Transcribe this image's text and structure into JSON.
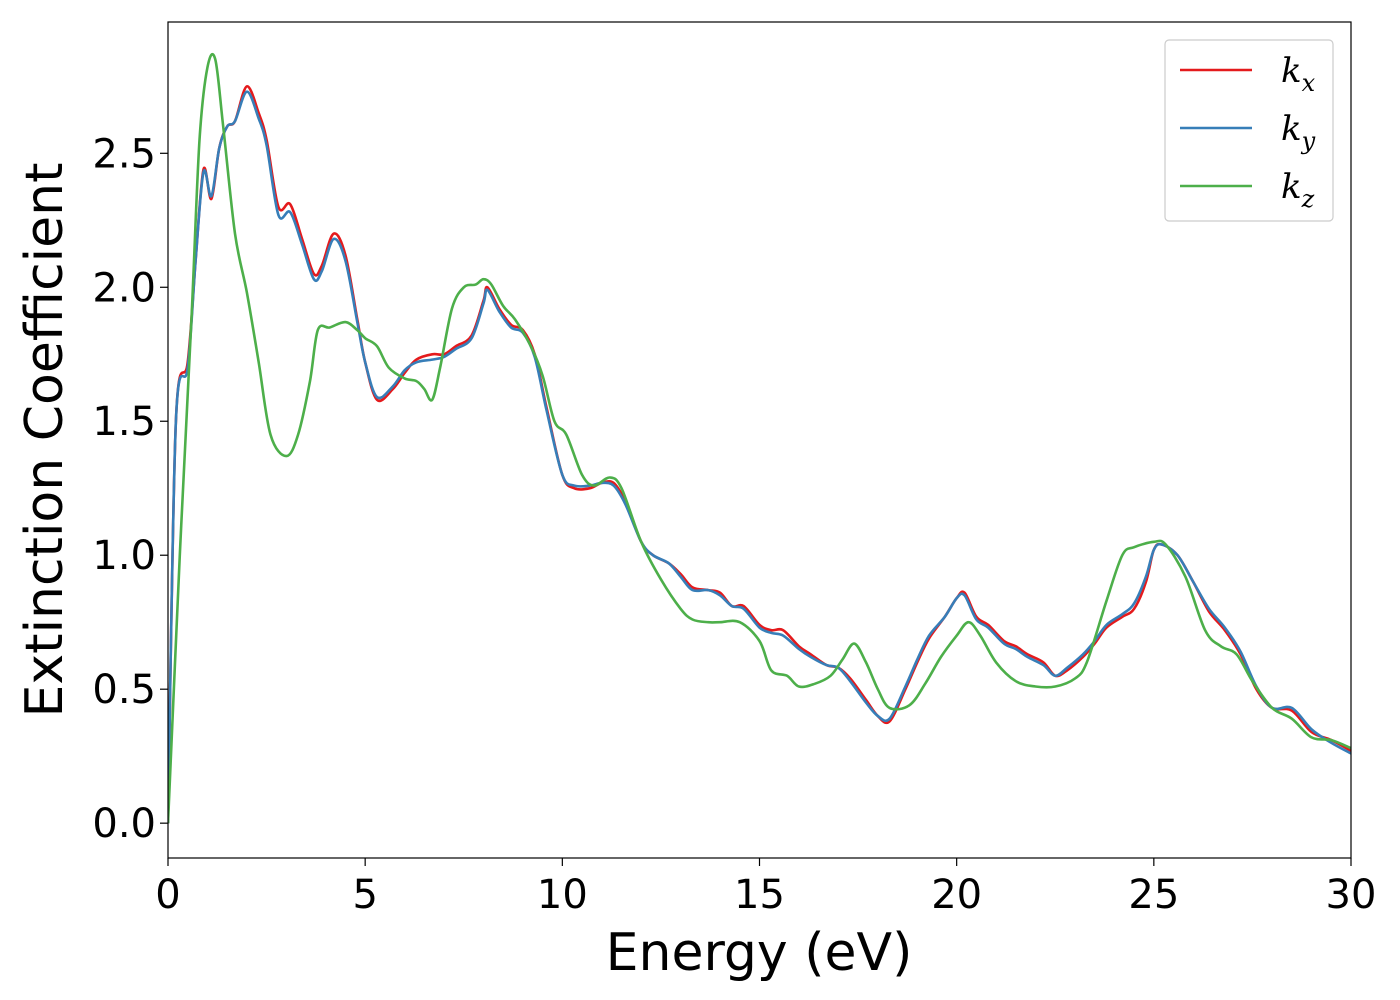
{
  "chart_data": {
    "type": "line",
    "title": "",
    "xlabel": "Energy (eV)",
    "ylabel": "Extinction Coefficient",
    "xlim": [
      0,
      30
    ],
    "ylim": [
      -0.13,
      2.99
    ],
    "xticks": [
      "0",
      "5",
      "10",
      "15",
      "20",
      "25",
      "30"
    ],
    "yticks": [
      "0.0",
      "0.5",
      "1.0",
      "1.5",
      "2.0",
      "2.5"
    ],
    "grid": false,
    "legend_position": "top-right",
    "series": [
      {
        "name": "k_x",
        "label_base": "k",
        "label_sub": "x",
        "color": "#e41a1c",
        "points": [
          [
            0,
            0
          ],
          [
            0.2,
            1.5
          ],
          [
            0.5,
            1.72
          ],
          [
            0.7,
            2.1
          ],
          [
            0.9,
            2.44
          ],
          [
            1.1,
            2.33
          ],
          [
            1.3,
            2.52
          ],
          [
            1.5,
            2.6
          ],
          [
            1.7,
            2.62
          ],
          [
            2.0,
            2.75
          ],
          [
            2.3,
            2.65
          ],
          [
            2.5,
            2.55
          ],
          [
            2.8,
            2.3
          ],
          [
            3.1,
            2.31
          ],
          [
            3.4,
            2.18
          ],
          [
            3.7,
            2.05
          ],
          [
            3.9,
            2.08
          ],
          [
            4.2,
            2.2
          ],
          [
            4.5,
            2.12
          ],
          [
            4.8,
            1.88
          ],
          [
            5.0,
            1.72
          ],
          [
            5.3,
            1.58
          ],
          [
            5.7,
            1.62
          ],
          [
            6.0,
            1.68
          ],
          [
            6.3,
            1.73
          ],
          [
            6.7,
            1.75
          ],
          [
            7.0,
            1.75
          ],
          [
            7.3,
            1.78
          ],
          [
            7.7,
            1.82
          ],
          [
            8.0,
            1.95
          ],
          [
            8.1,
            2.0
          ],
          [
            8.4,
            1.92
          ],
          [
            8.7,
            1.86
          ],
          [
            9.0,
            1.84
          ],
          [
            9.3,
            1.75
          ],
          [
            9.6,
            1.55
          ],
          [
            10.0,
            1.3
          ],
          [
            10.3,
            1.25
          ],
          [
            10.7,
            1.25
          ],
          [
            11.0,
            1.27
          ],
          [
            11.3,
            1.27
          ],
          [
            11.6,
            1.2
          ],
          [
            12.0,
            1.05
          ],
          [
            12.3,
            1.0
          ],
          [
            12.7,
            0.97
          ],
          [
            13.0,
            0.93
          ],
          [
            13.3,
            0.88
          ],
          [
            13.7,
            0.87
          ],
          [
            14.0,
            0.86
          ],
          [
            14.3,
            0.81
          ],
          [
            14.6,
            0.81
          ],
          [
            15.0,
            0.74
          ],
          [
            15.3,
            0.72
          ],
          [
            15.6,
            0.72
          ],
          [
            16.0,
            0.66
          ],
          [
            16.3,
            0.63
          ],
          [
            16.7,
            0.59
          ],
          [
            17.0,
            0.58
          ],
          [
            17.3,
            0.54
          ],
          [
            17.7,
            0.46
          ],
          [
            18.0,
            0.4
          ],
          [
            18.3,
            0.38
          ],
          [
            18.7,
            0.5
          ],
          [
            19.0,
            0.6
          ],
          [
            19.3,
            0.69
          ],
          [
            19.7,
            0.77
          ],
          [
            20.0,
            0.84
          ],
          [
            20.2,
            0.86
          ],
          [
            20.5,
            0.77
          ],
          [
            20.8,
            0.74
          ],
          [
            21.2,
            0.68
          ],
          [
            21.5,
            0.66
          ],
          [
            21.8,
            0.63
          ],
          [
            22.2,
            0.6
          ],
          [
            22.5,
            0.55
          ],
          [
            22.8,
            0.57
          ],
          [
            23.2,
            0.62
          ],
          [
            23.5,
            0.67
          ],
          [
            23.8,
            0.73
          ],
          [
            24.2,
            0.77
          ],
          [
            24.5,
            0.8
          ],
          [
            24.8,
            0.9
          ],
          [
            25.0,
            1.02
          ],
          [
            25.2,
            1.04
          ],
          [
            25.6,
            1.0
          ],
          [
            26.0,
            0.9
          ],
          [
            26.4,
            0.79
          ],
          [
            26.8,
            0.72
          ],
          [
            27.2,
            0.63
          ],
          [
            27.6,
            0.5
          ],
          [
            28.0,
            0.43
          ],
          [
            28.5,
            0.42
          ],
          [
            29.0,
            0.34
          ],
          [
            29.5,
            0.31
          ],
          [
            30.0,
            0.27
          ]
        ]
      },
      {
        "name": "k_y",
        "label_base": "k",
        "label_sub": "y",
        "color": "#377eb8",
        "points": [
          [
            0,
            0
          ],
          [
            0.2,
            1.5
          ],
          [
            0.5,
            1.7
          ],
          [
            0.7,
            2.1
          ],
          [
            0.9,
            2.43
          ],
          [
            1.1,
            2.34
          ],
          [
            1.3,
            2.52
          ],
          [
            1.5,
            2.6
          ],
          [
            1.7,
            2.62
          ],
          [
            2.0,
            2.73
          ],
          [
            2.3,
            2.63
          ],
          [
            2.5,
            2.53
          ],
          [
            2.8,
            2.27
          ],
          [
            3.1,
            2.28
          ],
          [
            3.4,
            2.16
          ],
          [
            3.7,
            2.03
          ],
          [
            3.9,
            2.06
          ],
          [
            4.2,
            2.18
          ],
          [
            4.5,
            2.1
          ],
          [
            4.8,
            1.87
          ],
          [
            5.0,
            1.72
          ],
          [
            5.3,
            1.59
          ],
          [
            5.7,
            1.63
          ],
          [
            6.0,
            1.69
          ],
          [
            6.3,
            1.72
          ],
          [
            6.7,
            1.73
          ],
          [
            7.0,
            1.74
          ],
          [
            7.3,
            1.77
          ],
          [
            7.7,
            1.81
          ],
          [
            8.0,
            1.94
          ],
          [
            8.1,
            1.99
          ],
          [
            8.4,
            1.91
          ],
          [
            8.7,
            1.85
          ],
          [
            9.0,
            1.83
          ],
          [
            9.3,
            1.74
          ],
          [
            9.6,
            1.54
          ],
          [
            10.0,
            1.3
          ],
          [
            10.3,
            1.26
          ],
          [
            10.7,
            1.26
          ],
          [
            11.0,
            1.27
          ],
          [
            11.3,
            1.26
          ],
          [
            11.6,
            1.19
          ],
          [
            12.0,
            1.05
          ],
          [
            12.3,
            1.0
          ],
          [
            12.7,
            0.97
          ],
          [
            13.0,
            0.92
          ],
          [
            13.3,
            0.87
          ],
          [
            13.7,
            0.87
          ],
          [
            14.0,
            0.85
          ],
          [
            14.3,
            0.81
          ],
          [
            14.6,
            0.8
          ],
          [
            15.0,
            0.73
          ],
          [
            15.3,
            0.71
          ],
          [
            15.6,
            0.7
          ],
          [
            16.0,
            0.65
          ],
          [
            16.3,
            0.62
          ],
          [
            16.7,
            0.59
          ],
          [
            17.0,
            0.58
          ],
          [
            17.3,
            0.53
          ],
          [
            17.7,
            0.45
          ],
          [
            18.0,
            0.4
          ],
          [
            18.3,
            0.39
          ],
          [
            18.7,
            0.51
          ],
          [
            19.0,
            0.61
          ],
          [
            19.3,
            0.7
          ],
          [
            19.7,
            0.77
          ],
          [
            20.0,
            0.84
          ],
          [
            20.2,
            0.85
          ],
          [
            20.5,
            0.76
          ],
          [
            20.8,
            0.73
          ],
          [
            21.2,
            0.67
          ],
          [
            21.5,
            0.65
          ],
          [
            21.8,
            0.62
          ],
          [
            22.2,
            0.59
          ],
          [
            22.5,
            0.55
          ],
          [
            22.8,
            0.58
          ],
          [
            23.2,
            0.63
          ],
          [
            23.5,
            0.68
          ],
          [
            23.8,
            0.74
          ],
          [
            24.2,
            0.78
          ],
          [
            24.5,
            0.82
          ],
          [
            24.8,
            0.92
          ],
          [
            25.0,
            1.02
          ],
          [
            25.2,
            1.04
          ],
          [
            25.6,
            1.0
          ],
          [
            26.0,
            0.9
          ],
          [
            26.4,
            0.8
          ],
          [
            26.8,
            0.73
          ],
          [
            27.2,
            0.64
          ],
          [
            27.6,
            0.51
          ],
          [
            28.0,
            0.43
          ],
          [
            28.5,
            0.43
          ],
          [
            29.0,
            0.35
          ],
          [
            29.5,
            0.3
          ],
          [
            30.0,
            0.26
          ]
        ]
      },
      {
        "name": "k_z",
        "label_base": "k",
        "label_sub": "z",
        "color": "#4daf4a",
        "points": [
          [
            0,
            0
          ],
          [
            0.3,
            1.0
          ],
          [
            0.6,
            1.9
          ],
          [
            0.8,
            2.55
          ],
          [
            1.0,
            2.82
          ],
          [
            1.2,
            2.85
          ],
          [
            1.4,
            2.6
          ],
          [
            1.7,
            2.2
          ],
          [
            2.0,
            1.98
          ],
          [
            2.3,
            1.72
          ],
          [
            2.6,
            1.45
          ],
          [
            3.0,
            1.37
          ],
          [
            3.3,
            1.45
          ],
          [
            3.6,
            1.65
          ],
          [
            3.8,
            1.84
          ],
          [
            4.1,
            1.85
          ],
          [
            4.5,
            1.87
          ],
          [
            4.8,
            1.84
          ],
          [
            5.0,
            1.81
          ],
          [
            5.3,
            1.78
          ],
          [
            5.6,
            1.7
          ],
          [
            6.0,
            1.66
          ],
          [
            6.3,
            1.65
          ],
          [
            6.5,
            1.62
          ],
          [
            6.7,
            1.58
          ],
          [
            6.9,
            1.7
          ],
          [
            7.2,
            1.92
          ],
          [
            7.5,
            2.0
          ],
          [
            7.8,
            2.01
          ],
          [
            8.0,
            2.03
          ],
          [
            8.2,
            2.01
          ],
          [
            8.5,
            1.93
          ],
          [
            8.8,
            1.88
          ],
          [
            9.2,
            1.78
          ],
          [
            9.5,
            1.67
          ],
          [
            9.8,
            1.5
          ],
          [
            10.1,
            1.45
          ],
          [
            10.5,
            1.3
          ],
          [
            10.8,
            1.26
          ],
          [
            11.2,
            1.29
          ],
          [
            11.5,
            1.25
          ],
          [
            12.0,
            1.05
          ],
          [
            12.5,
            0.91
          ],
          [
            13.0,
            0.8
          ],
          [
            13.3,
            0.76
          ],
          [
            13.7,
            0.75
          ],
          [
            14.0,
            0.75
          ],
          [
            14.5,
            0.75
          ],
          [
            15.0,
            0.68
          ],
          [
            15.3,
            0.57
          ],
          [
            15.7,
            0.55
          ],
          [
            16.0,
            0.51
          ],
          [
            16.4,
            0.52
          ],
          [
            16.8,
            0.55
          ],
          [
            17.1,
            0.61
          ],
          [
            17.4,
            0.67
          ],
          [
            17.7,
            0.6
          ],
          [
            18.0,
            0.5
          ],
          [
            18.3,
            0.43
          ],
          [
            18.8,
            0.44
          ],
          [
            19.2,
            0.52
          ],
          [
            19.6,
            0.62
          ],
          [
            20.0,
            0.7
          ],
          [
            20.3,
            0.75
          ],
          [
            20.6,
            0.7
          ],
          [
            21.0,
            0.6
          ],
          [
            21.5,
            0.53
          ],
          [
            22.0,
            0.51
          ],
          [
            22.5,
            0.51
          ],
          [
            23.0,
            0.54
          ],
          [
            23.3,
            0.6
          ],
          [
            23.8,
            0.83
          ],
          [
            24.2,
            1.0
          ],
          [
            24.5,
            1.03
          ],
          [
            25.0,
            1.05
          ],
          [
            25.3,
            1.04
          ],
          [
            25.8,
            0.92
          ],
          [
            26.3,
            0.72
          ],
          [
            26.7,
            0.66
          ],
          [
            27.1,
            0.63
          ],
          [
            27.5,
            0.53
          ],
          [
            28.0,
            0.43
          ],
          [
            28.5,
            0.39
          ],
          [
            29.0,
            0.32
          ],
          [
            29.5,
            0.31
          ],
          [
            30.0,
            0.28
          ]
        ]
      }
    ]
  }
}
